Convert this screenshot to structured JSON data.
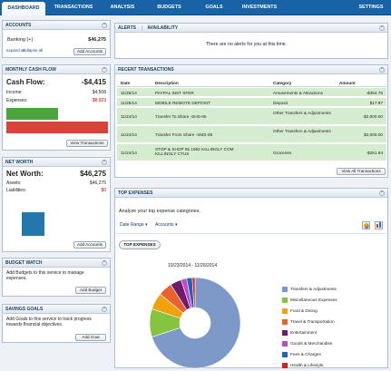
{
  "nav": {
    "tabs": [
      "DASHBOARD",
      "TRANSACTIONS",
      "ANALYSIS",
      "BUDGETS",
      "GOALS",
      "INVESTMENTS"
    ],
    "settings": "SETTINGS"
  },
  "accounts": {
    "title": "ACCOUNTS",
    "banking_label": "Banking (+)",
    "banking_value": "$46,275",
    "expand_all": "expand all",
    "collapse_all": "collapse all",
    "add_accounts": "Add Accounts"
  },
  "cashflow": {
    "title": "MONTHLY CASH FLOW",
    "label": "Cash Flow:",
    "value": "-$4,415",
    "income_label": "Income:",
    "income_value": "$4,508",
    "expenses_label": "Expenses:",
    "expenses_value": "$8,923",
    "view_transactions": "View Transactions",
    "income_ratio": 0.505
  },
  "networth": {
    "title": "NET WORTH",
    "label": "Net Worth:",
    "value": "$46,275",
    "assets_label": "Assets:",
    "assets_value": "$46,275",
    "liabilities_label": "Liabilities:",
    "liabilities_value": "$0",
    "add_accounts": "Add Accounts"
  },
  "budget": {
    "title": "BUDGET WATCH",
    "text": "Add Budgets to this service to manage expenses.",
    "button": "Add Budget"
  },
  "savings": {
    "title": "SAVINGS GOALS",
    "text": "Add Goals to this service to track progress towards financial objectives.",
    "button": "Add Goal"
  },
  "alerts": {
    "tab_alerts": "ALERTS",
    "tab_availability": "AVAILABILITY",
    "message": "There are no alerts for you at this time."
  },
  "recent": {
    "title": "RECENT TRANSACTIONS",
    "headers": [
      "Date",
      "Description",
      "Category",
      "Amount"
    ],
    "rows": [
      {
        "date": "11/25/14",
        "desc": "PAYPAL INST XFER",
        "cat": "Amusements & Attractions",
        "amt": "-$354.76"
      },
      {
        "date": "11/25/14",
        "desc": "MOBILE REMOTE DEPOSIT",
        "cat": "Deposit",
        "amt": "$17.97"
      },
      {
        "date": "11/24/14",
        "desc": "Transfer To Share -SHS-05",
        "cat": "Other Transfers & Adjustments",
        "amt": "-$2,000.00"
      },
      {
        "date": "11/24/14",
        "desc": "Transfer From Share -SMS-09",
        "cat": "Other Transfers & Adjustments",
        "amt": "$2,000.00"
      },
      {
        "date": "11/24/14",
        "desc": "STOP & SHOP 55 1592 KILLINGLY COM KILLINGLY CTUS",
        "cat": "Groceries",
        "amt": "-$251.94"
      }
    ],
    "view_all": "View All Transactions"
  },
  "top_expenses": {
    "title": "TOP EXPENSES",
    "subtitle": "Analyze your top expense categories.",
    "date_range": "Date Range",
    "accounts": "Accounts",
    "button": "TOP EXPENSES",
    "range": "10/23/2014 - 11/26/2014",
    "icons": [
      "bar-chart-icon",
      "pie-chart-icon"
    ]
  },
  "chart_data": {
    "type": "pie",
    "title": "10/23/2014 - 11/26/2014",
    "categories": [
      "Transfers & Adjustments",
      "Miscellaneous Expenses",
      "Food & Dining",
      "Travel & Transportation",
      "Entertainment",
      "Goods & Merchandise",
      "Fees & Charges",
      "Health & Lifestyle"
    ],
    "values": [
      70,
      10,
      6,
      5,
      4,
      2,
      2,
      1
    ],
    "colors": [
      "#7d99c8",
      "#86c440",
      "#f2a10e",
      "#e8622c",
      "#6e1d6d",
      "#c04ac5",
      "#1f63b7",
      "#e31b23"
    ],
    "legend_placement": "right"
  }
}
